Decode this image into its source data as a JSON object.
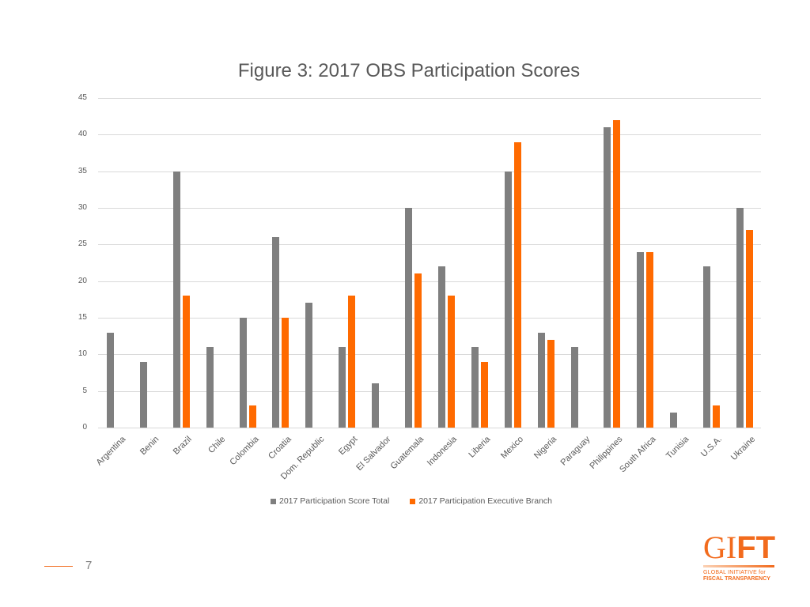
{
  "page": {
    "number": "7"
  },
  "logo": {
    "word_thin": "GI",
    "word_bold": "FT",
    "line1": "GLOBAL INITIATIVE for",
    "line2": "FISCAL TRANSPARENCY"
  },
  "chart_data": {
    "type": "bar",
    "title": "Figure 3: 2017 OBS Participation Scores",
    "xlabel": "",
    "ylabel": "",
    "ylim": [
      0,
      45
    ],
    "yticks": [
      0,
      5,
      10,
      15,
      20,
      25,
      30,
      35,
      40,
      45
    ],
    "grid": true,
    "legend_position": "bottom",
    "categories": [
      "Argentina",
      "Benin",
      "Brazil",
      "Chile",
      "Colombia",
      "Croatia",
      "Dom. Republic",
      "Egypt",
      "El Salvador",
      "Guatemala",
      "Indonesia",
      "Liberia",
      "Mexico",
      "Nigeria",
      "Paraguay",
      "Philippines",
      "South Africa",
      "Tunisia",
      "U.S.A.",
      "Ukraine"
    ],
    "series": [
      {
        "name": "2017 Participation Score Total",
        "color": "#7f7f7f",
        "values": [
          13,
          9,
          35,
          11,
          15,
          26,
          17,
          11,
          6,
          30,
          22,
          11,
          35,
          13,
          11,
          41,
          24,
          2,
          22,
          30
        ]
      },
      {
        "name": "2017 Participation Executive Branch",
        "color": "#ff6a00",
        "values": [
          0,
          0,
          18,
          0,
          3,
          15,
          0,
          18,
          0,
          21,
          18,
          9,
          39,
          12,
          0,
          42,
          24,
          0,
          3,
          27
        ]
      }
    ]
  }
}
